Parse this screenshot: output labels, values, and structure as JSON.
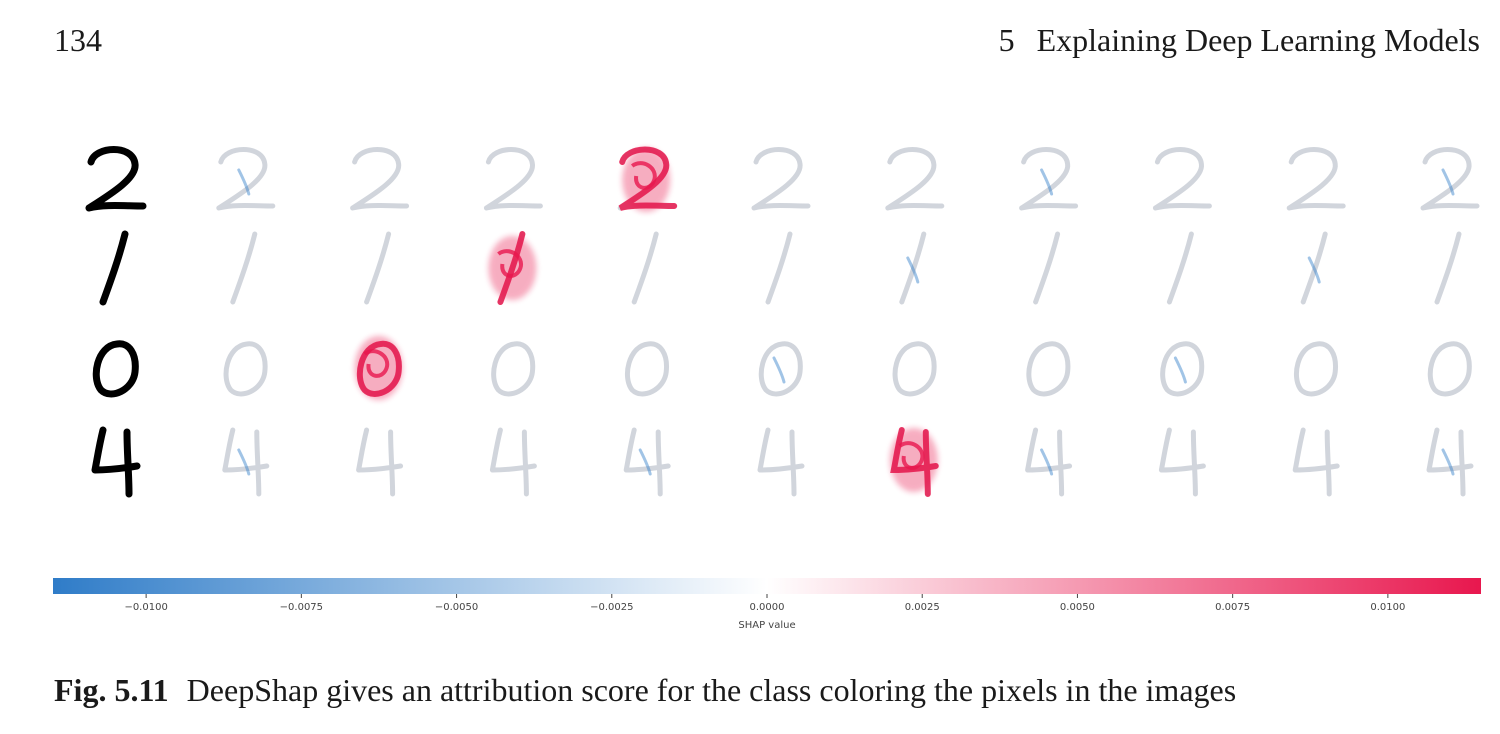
{
  "header": {
    "page_number": "134",
    "chapter_number": "5",
    "chapter_title": "Explaining Deep Learning Models"
  },
  "figure": {
    "description_rows": [
      "2",
      "1",
      "0",
      "4"
    ],
    "num_explanation_columns": 10,
    "highlighted": [
      {
        "row": 0,
        "col": 3
      },
      {
        "row": 1,
        "col": 2
      },
      {
        "row": 2,
        "col": 1
      },
      {
        "row": 3,
        "col": 5
      }
    ],
    "colors": {
      "negative": "#2f7cc8",
      "neutral": "#ffffff",
      "positive": "#e8174e",
      "ghost_digit": "#c9ced6",
      "input_digit": "#000000"
    }
  },
  "chart_data": {
    "type": "heatmap",
    "xlabel": "SHAP value",
    "colorbar_range": [
      -0.0115,
      0.0115
    ],
    "ticks": [
      -0.01,
      -0.0075,
      -0.005,
      -0.0025,
      0.0,
      0.0025,
      0.005,
      0.0075,
      0.01
    ],
    "tick_labels": [
      "−0.0100",
      "−0.0075",
      "−0.0050",
      "−0.0025",
      "0.0000",
      "0.0025",
      "0.0050",
      "0.0075",
      "0.0100"
    ]
  },
  "caption": {
    "label": "Fig. 5.11",
    "text": "DeepShap gives an attribution score for the class coloring the pixels in the images"
  }
}
